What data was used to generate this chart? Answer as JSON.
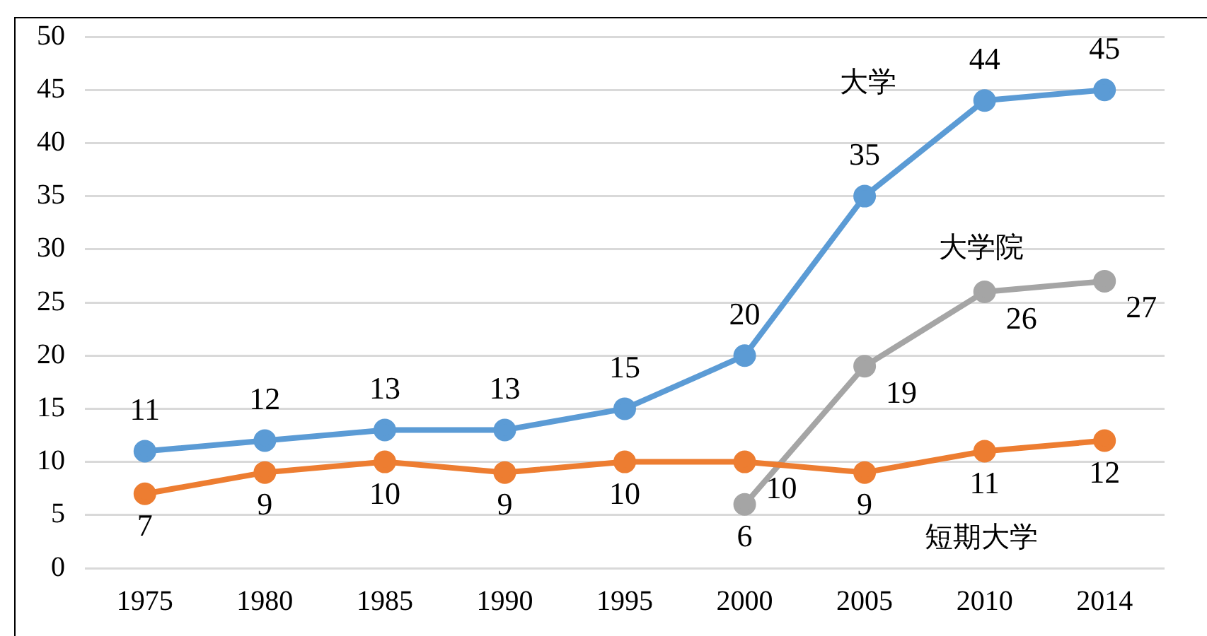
{
  "chart_data": {
    "type": "line",
    "categories": [
      "1975",
      "1980",
      "1985",
      "1990",
      "1995",
      "2000",
      "2005",
      "2010",
      "2014"
    ],
    "series": [
      {
        "name": "大学",
        "color": "#5b9bd5",
        "values": [
          11,
          12,
          13,
          13,
          15,
          20,
          35,
          44,
          45
        ]
      },
      {
        "name": "短期大学",
        "color": "#ed7d31",
        "values": [
          7,
          9,
          10,
          9,
          10,
          10,
          9,
          11,
          12
        ]
      },
      {
        "name": "大学院",
        "color": "#a5a5a5",
        "values": [
          null,
          null,
          null,
          null,
          null,
          6,
          19,
          26,
          27
        ]
      }
    ],
    "ylim": [
      0,
      50
    ],
    "yticks": [
      0,
      5,
      10,
      15,
      20,
      25,
      30,
      35,
      40,
      45,
      50
    ],
    "grid": "y",
    "legend": false,
    "marker": "circle",
    "line_style": "solid",
    "data_labels": true
  }
}
